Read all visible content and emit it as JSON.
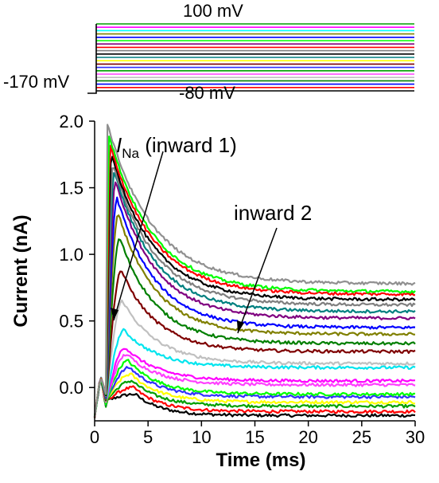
{
  "chart_data": {
    "type": "line",
    "title": "",
    "xlabel": "Time (ms)",
    "ylabel": "Current (nA)",
    "xlim": [
      0,
      30
    ],
    "ylim": [
      -0.25,
      2.0
    ],
    "x_ticks": [
      0,
      5,
      10,
      15,
      20,
      25,
      30
    ],
    "x_tick_labels": [
      "0",
      "5",
      "10",
      "15",
      "20",
      "25",
      "30"
    ],
    "y_ticks": [
      0.0,
      0.5,
      1.0,
      1.5,
      2.0
    ],
    "y_tick_labels": [
      "0.0",
      "0.5",
      "1.0",
      "1.5",
      "2.0"
    ],
    "grid": false,
    "legend": "none",
    "annotations": {
      "ina_main": "I",
      "ina_sub": "Na",
      "ina_rest": " (inward 1)",
      "inward2": "inward 2"
    },
    "protocol": {
      "label_top": "100 mV",
      "label_bottom": "-80 mV",
      "label_hold": "-170 mV"
    },
    "series": [
      {
        "color": "#000000",
        "peak": -0.05,
        "steady": -0.21
      },
      {
        "color": "#ff0000",
        "peak": 0.0,
        "steady": -0.18
      },
      {
        "color": "#00a000",
        "peak": 0.05,
        "steady": -0.14
      },
      {
        "color": "#ffff00",
        "peak": 0.1,
        "steady": -0.11
      },
      {
        "color": "#3030ff",
        "peak": 0.15,
        "steady": -0.07
      },
      {
        "color": "#00ff00",
        "peak": 0.2,
        "steady": -0.05
      },
      {
        "color": "#ff40ff",
        "peak": 0.25,
        "steady": 0.02
      },
      {
        "color": "#ff00ff",
        "peak": 0.3,
        "steady": 0.05
      },
      {
        "color": "#00e5ee",
        "peak": 0.43,
        "steady": 0.15
      },
      {
        "color": "#c0c0c0",
        "peak": 0.65,
        "steady": 0.18
      },
      {
        "color": "#7f0000",
        "peak": 0.88,
        "steady": 0.27
      },
      {
        "color": "#007f00",
        "peak": 1.12,
        "steady": 0.33
      },
      {
        "color": "#808000",
        "peak": 1.3,
        "steady": 0.4
      },
      {
        "color": "#0000ff",
        "peak": 1.42,
        "steady": 0.45
      },
      {
        "color": "#800080",
        "peak": 1.55,
        "steady": 0.52
      },
      {
        "color": "#008080",
        "peak": 1.62,
        "steady": 0.57
      },
      {
        "color": "#808080",
        "peak": 1.68,
        "steady": 0.62
      },
      {
        "color": "#000000",
        "peak": 1.75,
        "steady": 0.66
      },
      {
        "color": "#ff0000",
        "peak": 1.82,
        "steady": 0.7
      },
      {
        "color": "#00ff00",
        "peak": 1.9,
        "steady": 0.72
      },
      {
        "color": "#909090",
        "peak": 1.98,
        "steady": 0.78
      }
    ],
    "step_colors": [
      "#00a000",
      "#ff00ff",
      "#00ffff",
      "#808000",
      "#0000ff",
      "#00ff00",
      "#800080",
      "#ff0000",
      "#808080",
      "#000000",
      "#008080",
      "#ffff00",
      "#7f0000",
      "#3030ff",
      "#00a000",
      "#ff40ff",
      "#c0c0c0",
      "#007f00",
      "#0000ff",
      "#ff0000",
      "#000000"
    ]
  }
}
